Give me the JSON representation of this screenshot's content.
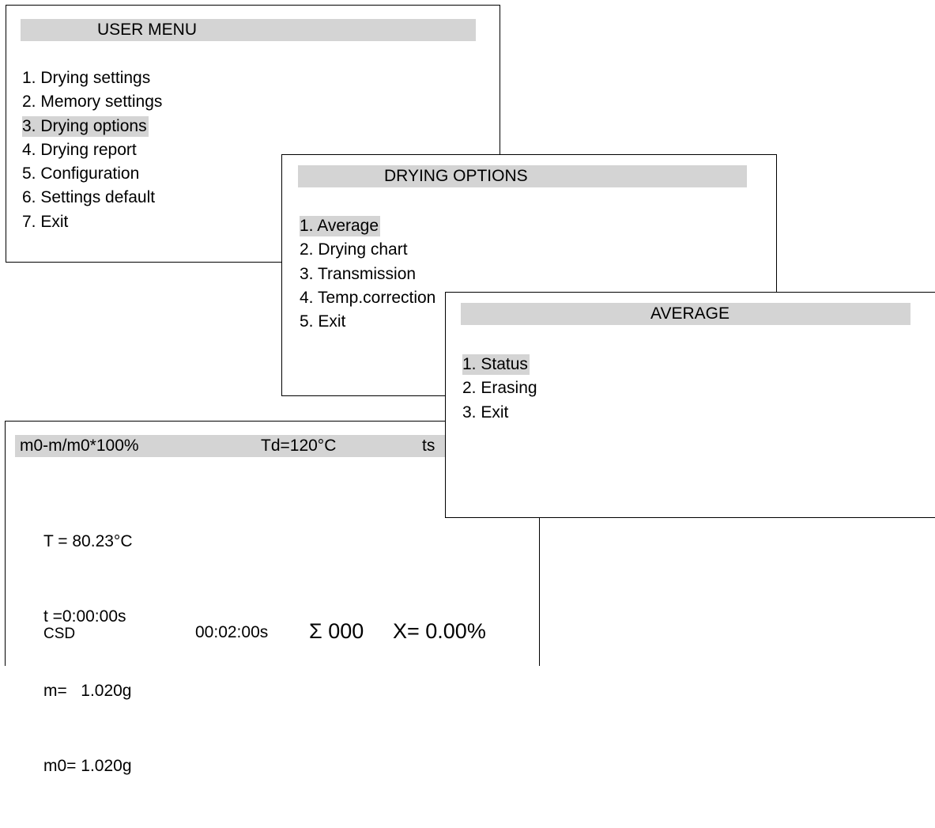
{
  "user_menu": {
    "title": "USER MENU",
    "items": [
      {
        "label": "1. Drying settings",
        "selected": false
      },
      {
        "label": "2. Memory settings",
        "selected": false
      },
      {
        "label": "3. Drying options",
        "selected": true
      },
      {
        "label": "4. Drying report",
        "selected": false
      },
      {
        "label": "5. Configuration",
        "selected": false
      },
      {
        "label": "6. Settings default",
        "selected": false
      },
      {
        "label": "7. Exit",
        "selected": false
      }
    ]
  },
  "drying_options": {
    "title": "DRYING OPTIONS",
    "items": [
      {
        "label": "1. Average",
        "selected": true
      },
      {
        "label": "2. Drying chart",
        "selected": false
      },
      {
        "label": "3. Transmission",
        "selected": false
      },
      {
        "label": "4. Temp.correction",
        "selected": false
      },
      {
        "label": "5. Exit",
        "selected": false
      }
    ]
  },
  "average_menu": {
    "title": "AVERAGE",
    "items": [
      {
        "label": "1. Status",
        "selected": true
      },
      {
        "label": "2. Erasing",
        "selected": false
      },
      {
        "label": "3. Exit",
        "selected": false
      }
    ]
  },
  "drying_screen": {
    "header": {
      "formula": "m0-m/m0*100%",
      "drying_temp": "Td=120°C",
      "time_setting": "ts"
    },
    "readings": {
      "temperature": "T = 80.23°C",
      "time": "t =0:00:00s",
      "mass": "m=   1.020g",
      "initial_mass": "m0= 1.020g"
    },
    "status": {
      "mode": "CSD",
      "elapsed": "00:02:00s",
      "sum": "Σ 000",
      "result": "X= 0.00%"
    }
  },
  "colors": {
    "highlight": "#d4d4d4",
    "border": "#000000",
    "background": "#ffffff"
  }
}
